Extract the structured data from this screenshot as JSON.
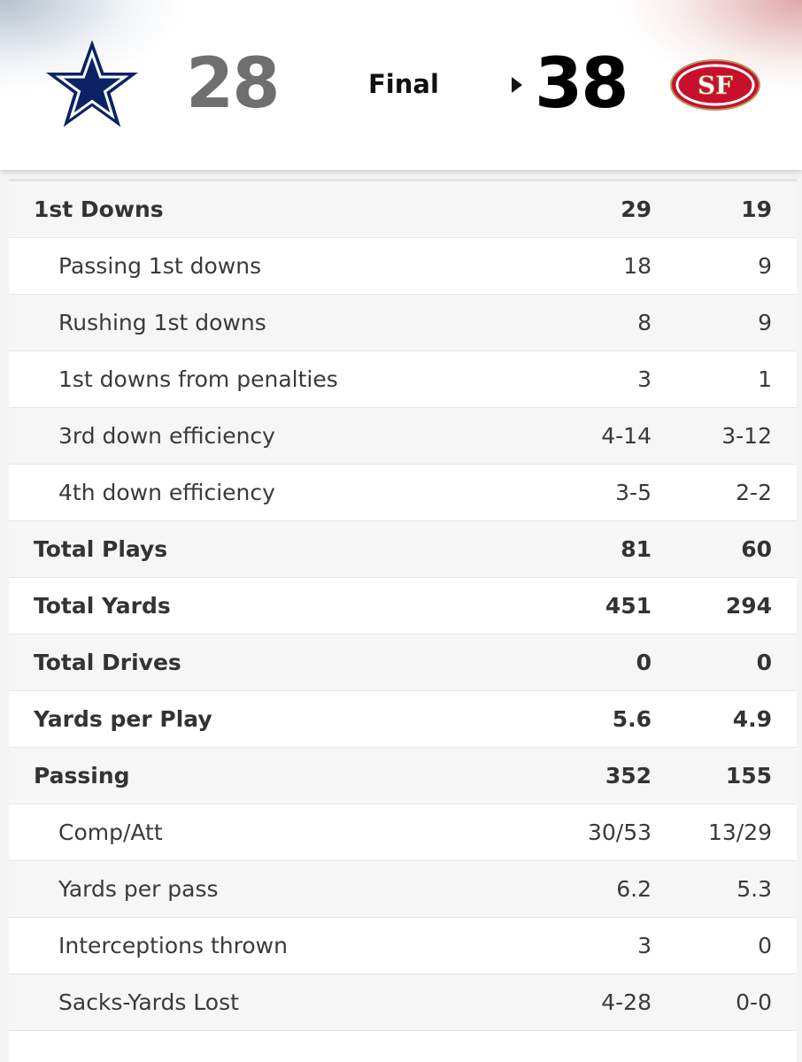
{
  "scoreboard": {
    "away_team_logo": "dallas-cowboys-star-icon",
    "away_score": "28",
    "status": "Final",
    "home_score": "38",
    "home_team_logo": "sf-49ers-oval-icon",
    "home_logo_text": "SF",
    "winner_indicator": "home",
    "colors": {
      "away_star": "#0b2265",
      "home_red": "#c8102e",
      "home_gold": "#b3995d"
    }
  },
  "stats": [
    {
      "label": "1st Downs",
      "away": "29",
      "home": "19",
      "level": "main"
    },
    {
      "label": "Passing 1st downs",
      "away": "18",
      "home": "9",
      "level": "sub"
    },
    {
      "label": "Rushing 1st downs",
      "away": "8",
      "home": "9",
      "level": "sub"
    },
    {
      "label": "1st downs from penalties",
      "away": "3",
      "home": "1",
      "level": "sub"
    },
    {
      "label": "3rd down efficiency",
      "away": "4-14",
      "home": "3-12",
      "level": "sub"
    },
    {
      "label": "4th down efficiency",
      "away": "3-5",
      "home": "2-2",
      "level": "sub"
    },
    {
      "label": "Total Plays",
      "away": "81",
      "home": "60",
      "level": "main"
    },
    {
      "label": "Total Yards",
      "away": "451",
      "home": "294",
      "level": "main"
    },
    {
      "label": "Total Drives",
      "away": "0",
      "home": "0",
      "level": "main"
    },
    {
      "label": "Yards per Play",
      "away": "5.6",
      "home": "4.9",
      "level": "main"
    },
    {
      "label": "Passing",
      "away": "352",
      "home": "155",
      "level": "main"
    },
    {
      "label": "Comp/Att",
      "away": "30/53",
      "home": "13/29",
      "level": "sub"
    },
    {
      "label": "Yards per pass",
      "away": "6.2",
      "home": "5.3",
      "level": "sub"
    },
    {
      "label": "Interceptions thrown",
      "away": "3",
      "home": "0",
      "level": "sub"
    },
    {
      "label": "Sacks-Yards Lost",
      "away": "4-28",
      "home": "0-0",
      "level": "sub"
    }
  ]
}
